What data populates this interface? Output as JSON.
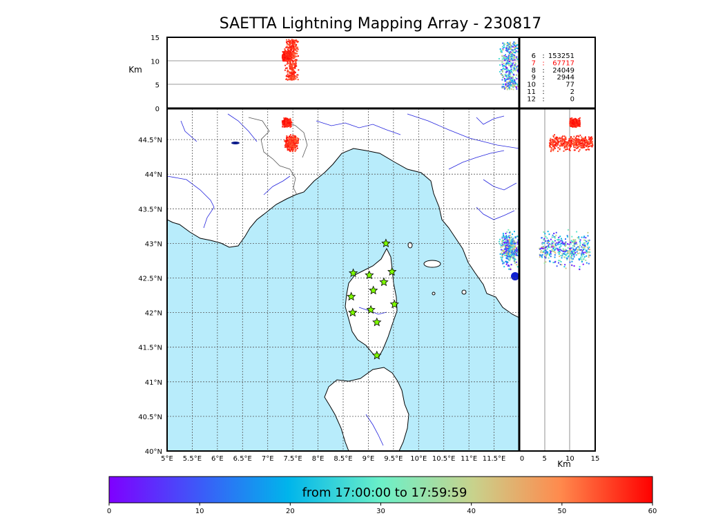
{
  "title": "SAETTA Lightning Mapping Array - 230817",
  "colors": {
    "sea": "#b8ecfb",
    "land": "#ffffff",
    "coast": "#000000",
    "rivers": "#2222dd",
    "borders": "#555555",
    "grid": "#555555",
    "station_fill": "#7fff00",
    "highlight_row": "#ff0000"
  },
  "map": {
    "lon_ticks": [
      "5°E",
      "5.5°E",
      "6°E",
      "6.5°E",
      "7°E",
      "7.5°E",
      "8°E",
      "8.5°E",
      "9°E",
      "9.5°E",
      "10°E",
      "10.5°E",
      "11°E",
      "11.5°E"
    ],
    "lat_ticks": [
      "40°N",
      "40.5°N",
      "41°N",
      "41.5°N",
      "42°N",
      "42.5°N",
      "43°N",
      "43.5°N",
      "44°N",
      "44.5°N"
    ],
    "lon_range": [
      5,
      12
    ],
    "lat_range": [
      40,
      44.95
    ],
    "stations": [
      {
        "lon": 9.35,
        "lat": 43.0
      },
      {
        "lon": 8.7,
        "lat": 42.57
      },
      {
        "lon": 9.02,
        "lat": 42.54
      },
      {
        "lon": 9.47,
        "lat": 42.59
      },
      {
        "lon": 9.1,
        "lat": 42.32
      },
      {
        "lon": 9.31,
        "lat": 42.44
      },
      {
        "lon": 8.66,
        "lat": 42.23
      },
      {
        "lon": 8.69,
        "lat": 42.0
      },
      {
        "lon": 9.05,
        "lat": 42.04
      },
      {
        "lon": 9.52,
        "lat": 42.12
      },
      {
        "lon": 9.17,
        "lat": 41.86
      },
      {
        "lon": 9.17,
        "lat": 41.38
      }
    ]
  },
  "top_panel": {
    "ylabel": "Km",
    "y_ticks": [
      "0",
      "5",
      "10",
      "15"
    ],
    "y_range": [
      0,
      15
    ]
  },
  "side_panel": {
    "xlabel": "Km",
    "x_ticks": [
      "0",
      "5",
      "10",
      "15"
    ],
    "x_range": [
      0,
      15
    ]
  },
  "legend_counts": [
    {
      "label": "6",
      "value": "153251",
      "highlight": false
    },
    {
      "label": "7",
      "value": "67717",
      "highlight": true
    },
    {
      "label": "8",
      "value": "24049",
      "highlight": false
    },
    {
      "label": "9",
      "value": "2944",
      "highlight": false
    },
    {
      "label": "10",
      "value": "77",
      "highlight": false
    },
    {
      "label": "11",
      "value": "2",
      "highlight": false
    },
    {
      "label": "12",
      "value": "0",
      "highlight": false
    }
  ],
  "colorbar": {
    "label": "from 17:00:00 to 17:59:59",
    "ticks": [
      "0",
      "10",
      "20",
      "30",
      "40",
      "50",
      "60"
    ],
    "range": [
      0,
      60
    ]
  },
  "clusters": [
    {
      "name": "cluster-north-alps",
      "lon": 7.48,
      "lat": 44.45,
      "lon_spread": 0.08,
      "lat_spread": 0.07,
      "alt_min": 6,
      "alt_max": 14.5,
      "time_min": 52,
      "time_max": 60
    },
    {
      "name": "cluster-north-alps-b",
      "lon": 7.38,
      "lat": 44.74,
      "lon_spread": 0.06,
      "lat_spread": 0.04,
      "alt_min": 10,
      "alt_max": 12,
      "time_min": 55,
      "time_max": 60
    },
    {
      "name": "cluster-tuscany-coast",
      "lon": 11.82,
      "lat": 42.92,
      "lon_spread": 0.14,
      "lat_spread": 0.16,
      "alt_min": 4,
      "alt_max": 14,
      "time_min": 0,
      "time_max": 45
    }
  ]
}
